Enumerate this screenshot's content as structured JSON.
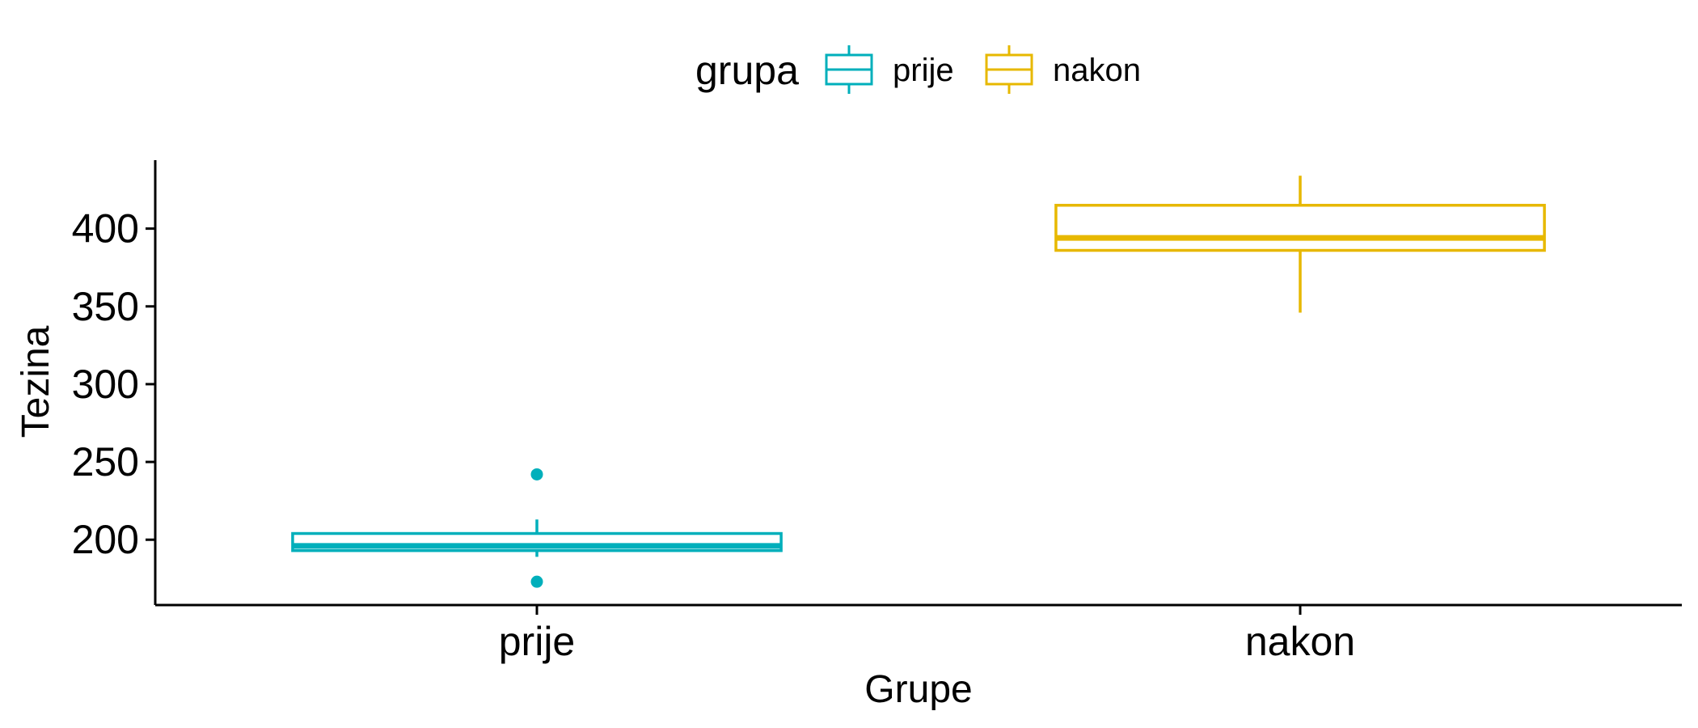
{
  "chart_data": {
    "type": "box",
    "title": "",
    "xlabel": "Grupe",
    "ylabel": "Tezina",
    "categories": [
      "prije",
      "nakon"
    ],
    "ylim": [
      158,
      444
    ],
    "yticks": [
      200,
      250,
      300,
      350,
      400
    ],
    "grid": false,
    "legend": {
      "title": "grupa",
      "position": "top",
      "entries": [
        "prije",
        "nakon"
      ]
    },
    "series": [
      {
        "name": "prije",
        "color": "#00AFBB",
        "min": 189,
        "q1": 193,
        "median": 196,
        "q3": 204,
        "max": 213,
        "outliers": [
          242,
          173
        ]
      },
      {
        "name": "nakon",
        "color": "#E7B800",
        "min": 346,
        "q1": 386,
        "median": 394,
        "q3": 415,
        "max": 434,
        "outliers": []
      }
    ]
  }
}
